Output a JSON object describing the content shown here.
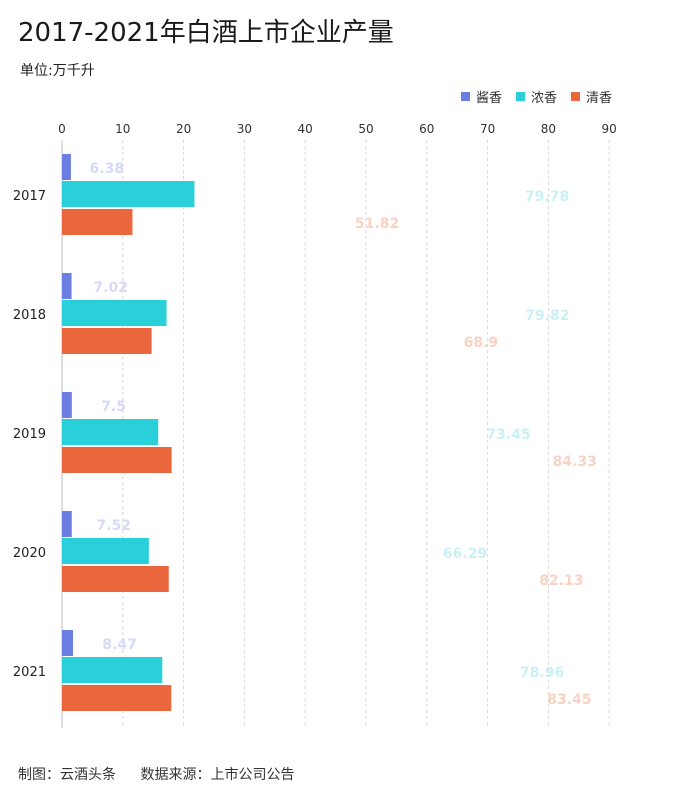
{
  "page": {
    "title": "2017-2021年白酒上市企业产量",
    "unit": "单位:万千升",
    "credit": "制图：云酒头条",
    "source": "数据来源：上市公司公告"
  },
  "chart_data": {
    "type": "bar",
    "orientation": "horizontal",
    "categories": [
      "2017",
      "2018",
      "2019",
      "2020",
      "2021"
    ],
    "series": [
      {
        "name": "酱香",
        "color": "#6b7fe3",
        "label_color": "#d4daf7",
        "values": [
          6.38,
          7.02,
          7.5,
          7.52,
          8.47
        ]
      },
      {
        "name": "浓香",
        "color": "#29cfd9",
        "label_color": "#c9f1f4",
        "values": [
          79.78,
          79.82,
          73.45,
          66.29,
          78.96
        ]
      },
      {
        "name": "清香",
        "color": "#ea673d",
        "label_color": "#f8d3c4",
        "values": [
          51.82,
          68.9,
          84.33,
          82.13,
          83.45
        ]
      }
    ],
    "x_ticks": [
      0,
      10,
      20,
      30,
      40,
      50,
      60,
      70,
      80,
      90
    ],
    "grid": "vertical-dashed",
    "legend_position": "top-right"
  }
}
